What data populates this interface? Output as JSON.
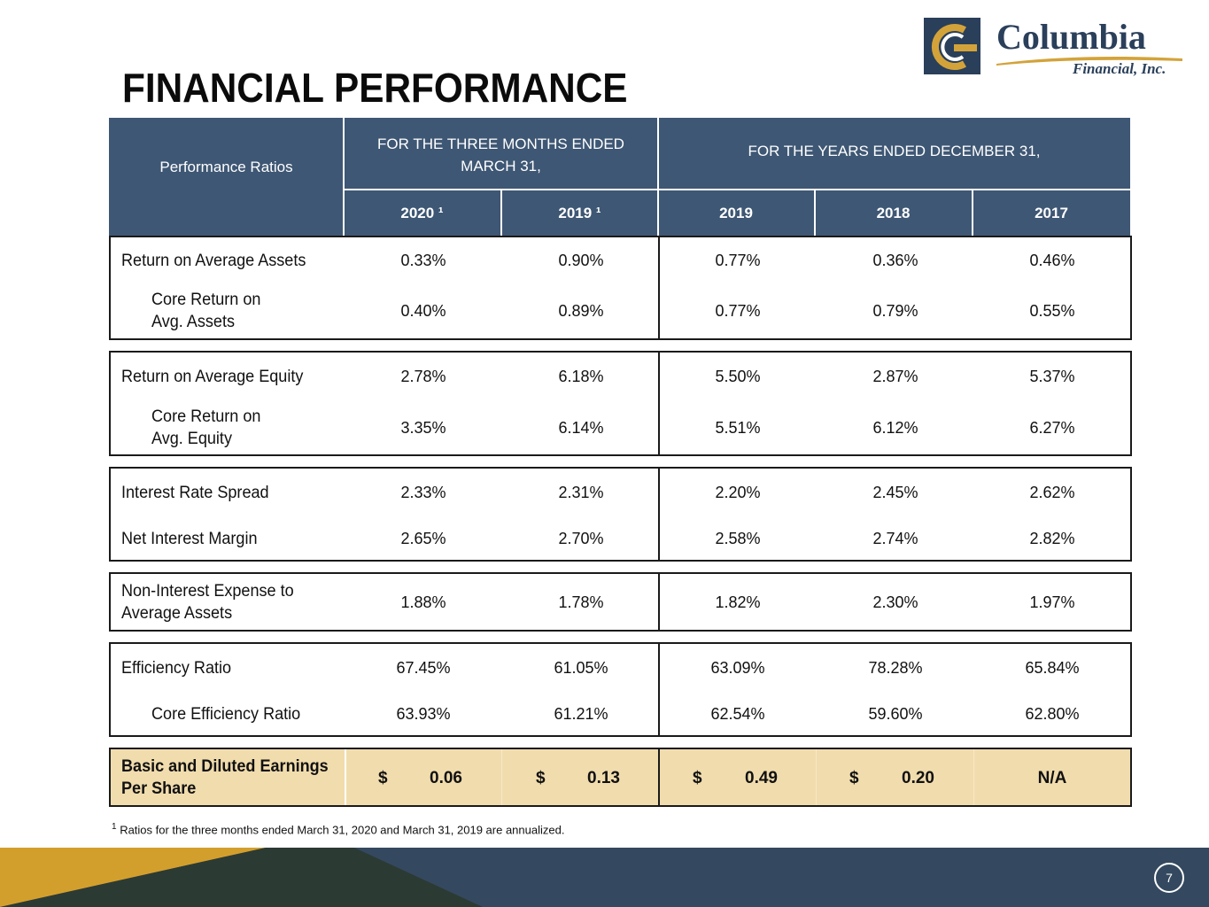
{
  "title": "FINANCIAL PERFORMANCE",
  "logo": {
    "name": "Columbia",
    "sub": "Financial, Inc."
  },
  "header": {
    "row_label": "Performance Ratios",
    "group_three_months": "FOR THE THREE MONTHS ENDED MARCH 31,",
    "group_three_months_line1": "FOR THE THREE MONTHS ENDED",
    "group_three_months_line2": "MARCH 31,",
    "group_years": "FOR THE YEARS ENDED DECEMBER 31,",
    "columns": [
      "2020 ¹",
      "2019 ¹",
      "2019",
      "2018",
      "2017"
    ]
  },
  "rows": [
    {
      "label": "Return on Average Assets",
      "values": [
        "0.33%",
        "0.90%",
        "0.77%",
        "0.36%",
        "0.46%"
      ]
    },
    {
      "label_line1": "Core Return on",
      "label_line2": "Avg. Assets",
      "values": [
        "0.40%",
        "0.89%",
        "0.77%",
        "0.79%",
        "0.55%"
      ]
    },
    {
      "label": "Return on Average Equity",
      "values": [
        "2.78%",
        "6.18%",
        "5.50%",
        "2.87%",
        "5.37%"
      ]
    },
    {
      "label_line1": "Core Return on",
      "label_line2": "Avg. Equity",
      "values": [
        "3.35%",
        "6.14%",
        "5.51%",
        "6.12%",
        "6.27%"
      ]
    },
    {
      "label": "Interest Rate Spread",
      "values": [
        "2.33%",
        "2.31%",
        "2.20%",
        "2.45%",
        "2.62%"
      ]
    },
    {
      "label": "Net Interest Margin",
      "values": [
        "2.65%",
        "2.70%",
        "2.58%",
        "2.74%",
        "2.82%"
      ]
    },
    {
      "label_line1": "Non-Interest Expense to",
      "label_line2": "Average Assets",
      "values": [
        "1.88%",
        "1.78%",
        "1.82%",
        "2.30%",
        "1.97%"
      ]
    },
    {
      "label": "Efficiency Ratio",
      "values": [
        "67.45%",
        "61.05%",
        "63.09%",
        "78.28%",
        "65.84%"
      ]
    },
    {
      "label": "Core Efficiency Ratio",
      "values": [
        "63.93%",
        "61.21%",
        "62.54%",
        "59.60%",
        "62.80%"
      ]
    },
    {
      "label_line1": "Basic and Diluted Earnings",
      "label_line2": "Per Share",
      "currency": "$",
      "values": [
        "0.06",
        "0.13",
        "0.49",
        "0.20",
        "N/A"
      ]
    }
  ],
  "footnote": {
    "marker": "1",
    "text": "Ratios for the three months ended March 31, 2020 and March 31, 2019 are annualized."
  },
  "page_number": "7",
  "colors": {
    "header_bg": "#3e5774",
    "eps_bg": "#f1dcad",
    "band_navy": "#34495f",
    "band_gold": "#d39f2c",
    "band_dark": "#2c3a34"
  }
}
